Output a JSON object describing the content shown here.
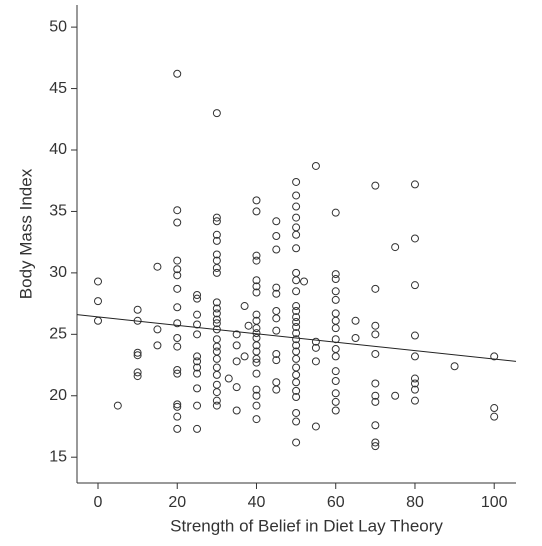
{
  "chart_data": {
    "type": "scatter",
    "x_label": "Strength of Belief in Diet Lay Theory",
    "y_label": "Body Mass Index",
    "xlim": [
      -5.3,
      105.5
    ],
    "ylim": [
      12.9,
      51.8
    ],
    "xticks": [
      0,
      20,
      40,
      60,
      80,
      100
    ],
    "yticks": [
      15,
      20,
      25,
      30,
      35,
      40,
      45,
      50
    ],
    "color": "#333333",
    "x": [
      0,
      0,
      0,
      5,
      10,
      10,
      10,
      10,
      10,
      10,
      15,
      15,
      15,
      20,
      20,
      20,
      20,
      20,
      20,
      20,
      20,
      20,
      20,
      20,
      20,
      20,
      20,
      20,
      20,
      20,
      25,
      25,
      25,
      25,
      25,
      25,
      25,
      25,
      25,
      25,
      25,
      25,
      30,
      30,
      30,
      30,
      30,
      30,
      30,
      30,
      30,
      30,
      30,
      30,
      30,
      30,
      30,
      30,
      30,
      30,
      30,
      30,
      30,
      30,
      30,
      30,
      30,
      33,
      35,
      35,
      35,
      35,
      35,
      37,
      37,
      38,
      40,
      40,
      40,
      40,
      40,
      40,
      40,
      40,
      40,
      40,
      40,
      40,
      40,
      40,
      40,
      40,
      40,
      40,
      40,
      40,
      40,
      45,
      45,
      45,
      45,
      45,
      45,
      45,
      45,
      45,
      45,
      45,
      45,
      50,
      50,
      50,
      50,
      50,
      50,
      50,
      50,
      50,
      50,
      50,
      50,
      50,
      50,
      50,
      50,
      50,
      50,
      50,
      50,
      50,
      50,
      50,
      50,
      50,
      50,
      50,
      50,
      52,
      55,
      55,
      55,
      55,
      55,
      60,
      60,
      60,
      60,
      60,
      60,
      60,
      60,
      60,
      60,
      60,
      60,
      60,
      60,
      60,
      60,
      65,
      65,
      70,
      70,
      70,
      70,
      70,
      70,
      70,
      70,
      70,
      70,
      70,
      75,
      75,
      80,
      80,
      80,
      80,
      80,
      80,
      80,
      80,
      80,
      90,
      100,
      100,
      100
    ],
    "y": [
      29.3,
      27.7,
      26.1,
      19.2,
      27.0,
      26.1,
      23.5,
      23.3,
      21.9,
      21.6,
      30.5,
      25.4,
      24.1,
      46.2,
      35.1,
      34.1,
      31.0,
      30.3,
      29.8,
      28.7,
      27.2,
      25.9,
      24.7,
      24.0,
      22.1,
      21.8,
      19.3,
      19.1,
      18.3,
      17.3,
      28.2,
      27.9,
      26.6,
      25.8,
      25.0,
      23.2,
      22.8,
      22.3,
      21.8,
      20.6,
      19.2,
      17.3,
      43.0,
      34.5,
      34.2,
      33.1,
      32.6,
      31.5,
      31.0,
      30.4,
      30.0,
      27.6,
      27.1,
      26.7,
      26.2,
      25.9,
      25.4,
      24.6,
      24.0,
      23.6,
      23.0,
      22.3,
      21.7,
      20.9,
      20.3,
      19.6,
      19.2,
      21.4,
      25.0,
      24.1,
      22.8,
      20.7,
      18.8,
      27.3,
      23.2,
      25.7,
      35.9,
      35.0,
      31.4,
      31.0,
      29.4,
      28.9,
      28.4,
      26.6,
      26.1,
      25.5,
      25.1,
      24.7,
      24.1,
      23.6,
      23.0,
      22.7,
      21.8,
      20.5,
      20.0,
      19.2,
      18.1,
      34.2,
      33.0,
      31.9,
      28.8,
      28.3,
      26.9,
      26.3,
      25.3,
      23.4,
      22.9,
      21.1,
      20.5,
      37.4,
      36.3,
      35.4,
      34.5,
      33.7,
      33.1,
      32.0,
      30.0,
      29.4,
      28.5,
      27.3,
      26.9,
      26.4,
      26.0,
      25.6,
      25.1,
      24.6,
      24.1,
      23.6,
      23.0,
      22.3,
      21.7,
      21.1,
      20.4,
      19.9,
      18.6,
      17.9,
      16.2,
      29.3,
      38.7,
      24.4,
      23.9,
      22.8,
      17.5,
      34.9,
      29.9,
      29.5,
      28.5,
      27.8,
      26.7,
      26.1,
      25.5,
      24.6,
      23.8,
      23.2,
      22.0,
      21.2,
      20.2,
      19.5,
      18.8,
      26.1,
      24.7,
      37.1,
      28.7,
      25.7,
      25.0,
      23.4,
      21.0,
      20.0,
      19.5,
      17.6,
      16.2,
      15.9,
      32.1,
      20.0,
      37.2,
      32.8,
      29.0,
      24.9,
      23.2,
      21.4,
      21.0,
      20.5,
      19.6,
      22.4,
      23.2,
      19.0,
      18.3
    ],
    "trendline": {
      "x": [
        -5.3,
        105.5
      ],
      "y": [
        26.6,
        22.8
      ]
    }
  }
}
